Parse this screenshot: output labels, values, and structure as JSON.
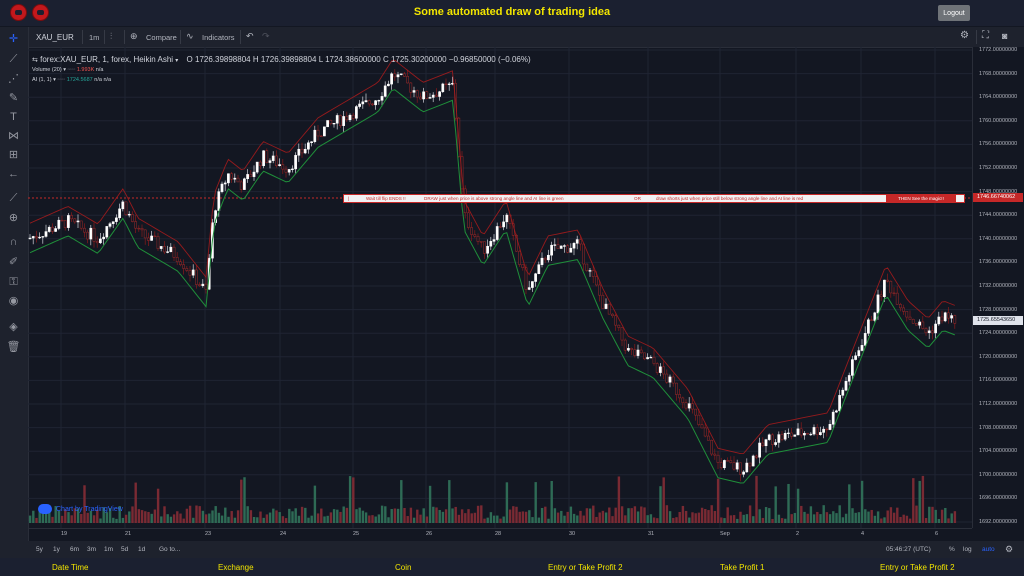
{
  "app": {
    "title": "Some automated draw of trading idea",
    "logout_label": "Logout"
  },
  "toolbar": {
    "symbol": "XAU_EUR",
    "interval": "1m",
    "compare_label": "Compare",
    "indicators_label": "Indicators",
    "undo_icon": "undo-icon",
    "redo_icon": "redo-icon"
  },
  "legend": {
    "main": {
      "title": "forex:XAU_EUR, 1, forex, Heikin Ashi",
      "open": "O 1726.39898804",
      "high": "H 1726.39898804",
      "low": "L 1724.38600000",
      "close": "C 1725.30200000",
      "change": "−0.96850000 (−0.06%)"
    },
    "volume": {
      "label": "Volume (20)",
      "value": "1.993K",
      "value2": "n/a"
    },
    "ai": {
      "label": "AI (1, 1)",
      "value": "1724.5687",
      "value2": "n/a",
      "value3": "n/a"
    }
  },
  "price_axis": {
    "ticks": [
      "1772.00000000",
      "1768.00000000",
      "1764.00000000",
      "1760.00000000",
      "1756.00000000",
      "1752.00000000",
      "1748.00000000",
      "1744.00000000",
      "1740.00000000",
      "1736.00000000",
      "1732.00000000",
      "1728.00000000",
      "1724.00000000",
      "1720.00000000",
      "1716.00000000",
      "1712.00000000",
      "1708.00000000",
      "1704.00000000",
      "1700.00000000",
      "1696.00000000",
      "1692.00000000"
    ],
    "alert_price": "1746.66740062",
    "current_price": "1725.65543650"
  },
  "banner": {
    "wait": "Wait till flip ENDS !!",
    "draw": "DRAW just when price is above strong angle line and AI line is green",
    "or": "OR",
    "shorts": "draw shorts just when price still below strong angle line and AI line is red",
    "magic": "THEN See the magic!!"
  },
  "time_axis": {
    "ticks": [
      "19",
      "21",
      "23",
      "24",
      "25",
      "26",
      "28",
      "30",
      "31",
      "Sep",
      "2",
      "4",
      "6"
    ]
  },
  "range_bar": {
    "ranges": [
      "5y",
      "1y",
      "6m",
      "3m",
      "1m",
      "5d",
      "1d"
    ],
    "goto": "Go to...",
    "clock": "05:46:27 (UTC)",
    "percent": "%",
    "log": "log",
    "auto": "auto"
  },
  "watermark": "Chart by TradingView",
  "footer": {
    "labels": [
      "Date Time",
      "Exchange",
      "Coin",
      "Entry or Take Profit 2",
      "Take Profit 1",
      "Entry or Take Profit 2"
    ]
  },
  "colors": {
    "up": "#ffffff",
    "down": "#8b1a1a",
    "ai_green": "#1f8f3a",
    "ai_red": "#b71c1c",
    "accent_yellow": "#f3e600",
    "alert_red": "#c62828"
  }
}
